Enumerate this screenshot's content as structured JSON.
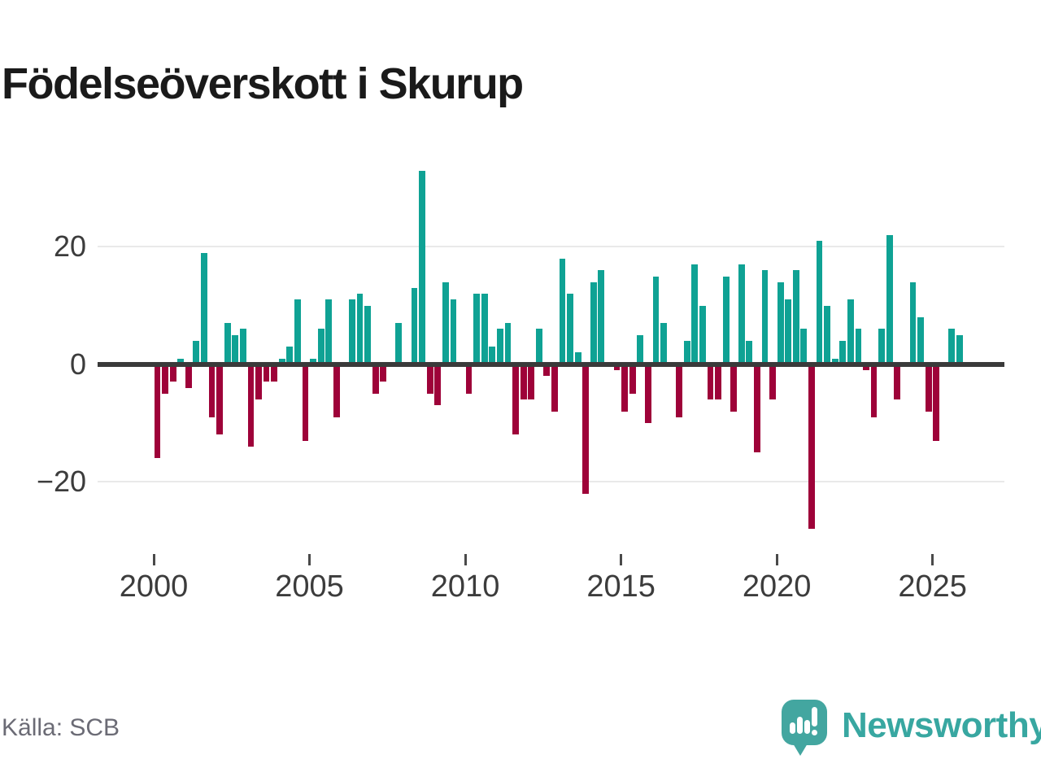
{
  "title": "Födelseöverskott i Skurup",
  "source": {
    "label": "Källa: SCB"
  },
  "branding": {
    "name": "Newsworthy",
    "icon": "speech-bubble-bar-chart-icon"
  },
  "colors": {
    "positive_bar": "#0fa294",
    "negative_bar": "#9e0239",
    "zero_line": "#3a3a3a",
    "gridline": "#e9e9e9",
    "axis_text": "#3c3c3c",
    "title_text": "#1a1a1a",
    "source_text": "#6b6b75",
    "brand_teal": "#3aa7a1"
  },
  "chart_data": {
    "type": "bar",
    "title": "Födelseöverskott i Skurup",
    "frequency": "quarterly",
    "start": "2000-Q1",
    "end": "2025-Q4",
    "x_tick_labels": [
      "2000",
      "2005",
      "2010",
      "2015",
      "2020",
      "2025"
    ],
    "y_ticks": [
      {
        "label": "20",
        "value": 20
      },
      {
        "label": "0",
        "value": 0
      },
      {
        "label": "−20",
        "value": -20
      }
    ],
    "ylim": [
      -30,
      36
    ],
    "grid": "horizontal-only",
    "legend": "none",
    "series": [
      {
        "year": 2000,
        "values": [
          -16,
          -5,
          -3,
          1
        ]
      },
      {
        "year": 2001,
        "values": [
          -4,
          4,
          19,
          -9
        ]
      },
      {
        "year": 2002,
        "values": [
          -12,
          7,
          5,
          6
        ]
      },
      {
        "year": 2003,
        "values": [
          -14,
          -6,
          -3,
          -3
        ]
      },
      {
        "year": 2004,
        "values": [
          1,
          3,
          11,
          -13
        ]
      },
      {
        "year": 2005,
        "values": [
          1,
          6,
          11,
          -9
        ]
      },
      {
        "year": 2006,
        "values": [
          0,
          11,
          12,
          10
        ]
      },
      {
        "year": 2007,
        "values": [
          -5,
          -3,
          0,
          7
        ]
      },
      {
        "year": 2008,
        "values": [
          0,
          13,
          33,
          -5
        ]
      },
      {
        "year": 2009,
        "values": [
          -7,
          14,
          11,
          0
        ]
      },
      {
        "year": 2010,
        "values": [
          -5,
          12,
          12,
          3
        ]
      },
      {
        "year": 2011,
        "values": [
          6,
          7,
          -12,
          -6
        ]
      },
      {
        "year": 2012,
        "values": [
          -6,
          6,
          -2,
          -8
        ]
      },
      {
        "year": 2013,
        "values": [
          18,
          12,
          2,
          -22
        ]
      },
      {
        "year": 2014,
        "values": [
          14,
          16,
          0,
          -1
        ]
      },
      {
        "year": 2015,
        "values": [
          -8,
          -5,
          5,
          -10
        ]
      },
      {
        "year": 2016,
        "values": [
          15,
          7,
          0,
          -9
        ]
      },
      {
        "year": 2017,
        "values": [
          4,
          17,
          10,
          -6
        ]
      },
      {
        "year": 2018,
        "values": [
          -6,
          15,
          -8,
          17
        ]
      },
      {
        "year": 2019,
        "values": [
          4,
          -15,
          16,
          -6
        ]
      },
      {
        "year": 2020,
        "values": [
          14,
          11,
          16,
          6
        ]
      },
      {
        "year": 2021,
        "values": [
          -28,
          21,
          10,
          1
        ]
      },
      {
        "year": 2022,
        "values": [
          4,
          11,
          6,
          -1
        ]
      },
      {
        "year": 2023,
        "values": [
          -9,
          6,
          22,
          -6
        ]
      },
      {
        "year": 2024,
        "values": [
          0,
          14,
          8,
          -8
        ]
      },
      {
        "year": 2025,
        "values": [
          -13,
          0,
          6,
          5
        ]
      }
    ]
  }
}
